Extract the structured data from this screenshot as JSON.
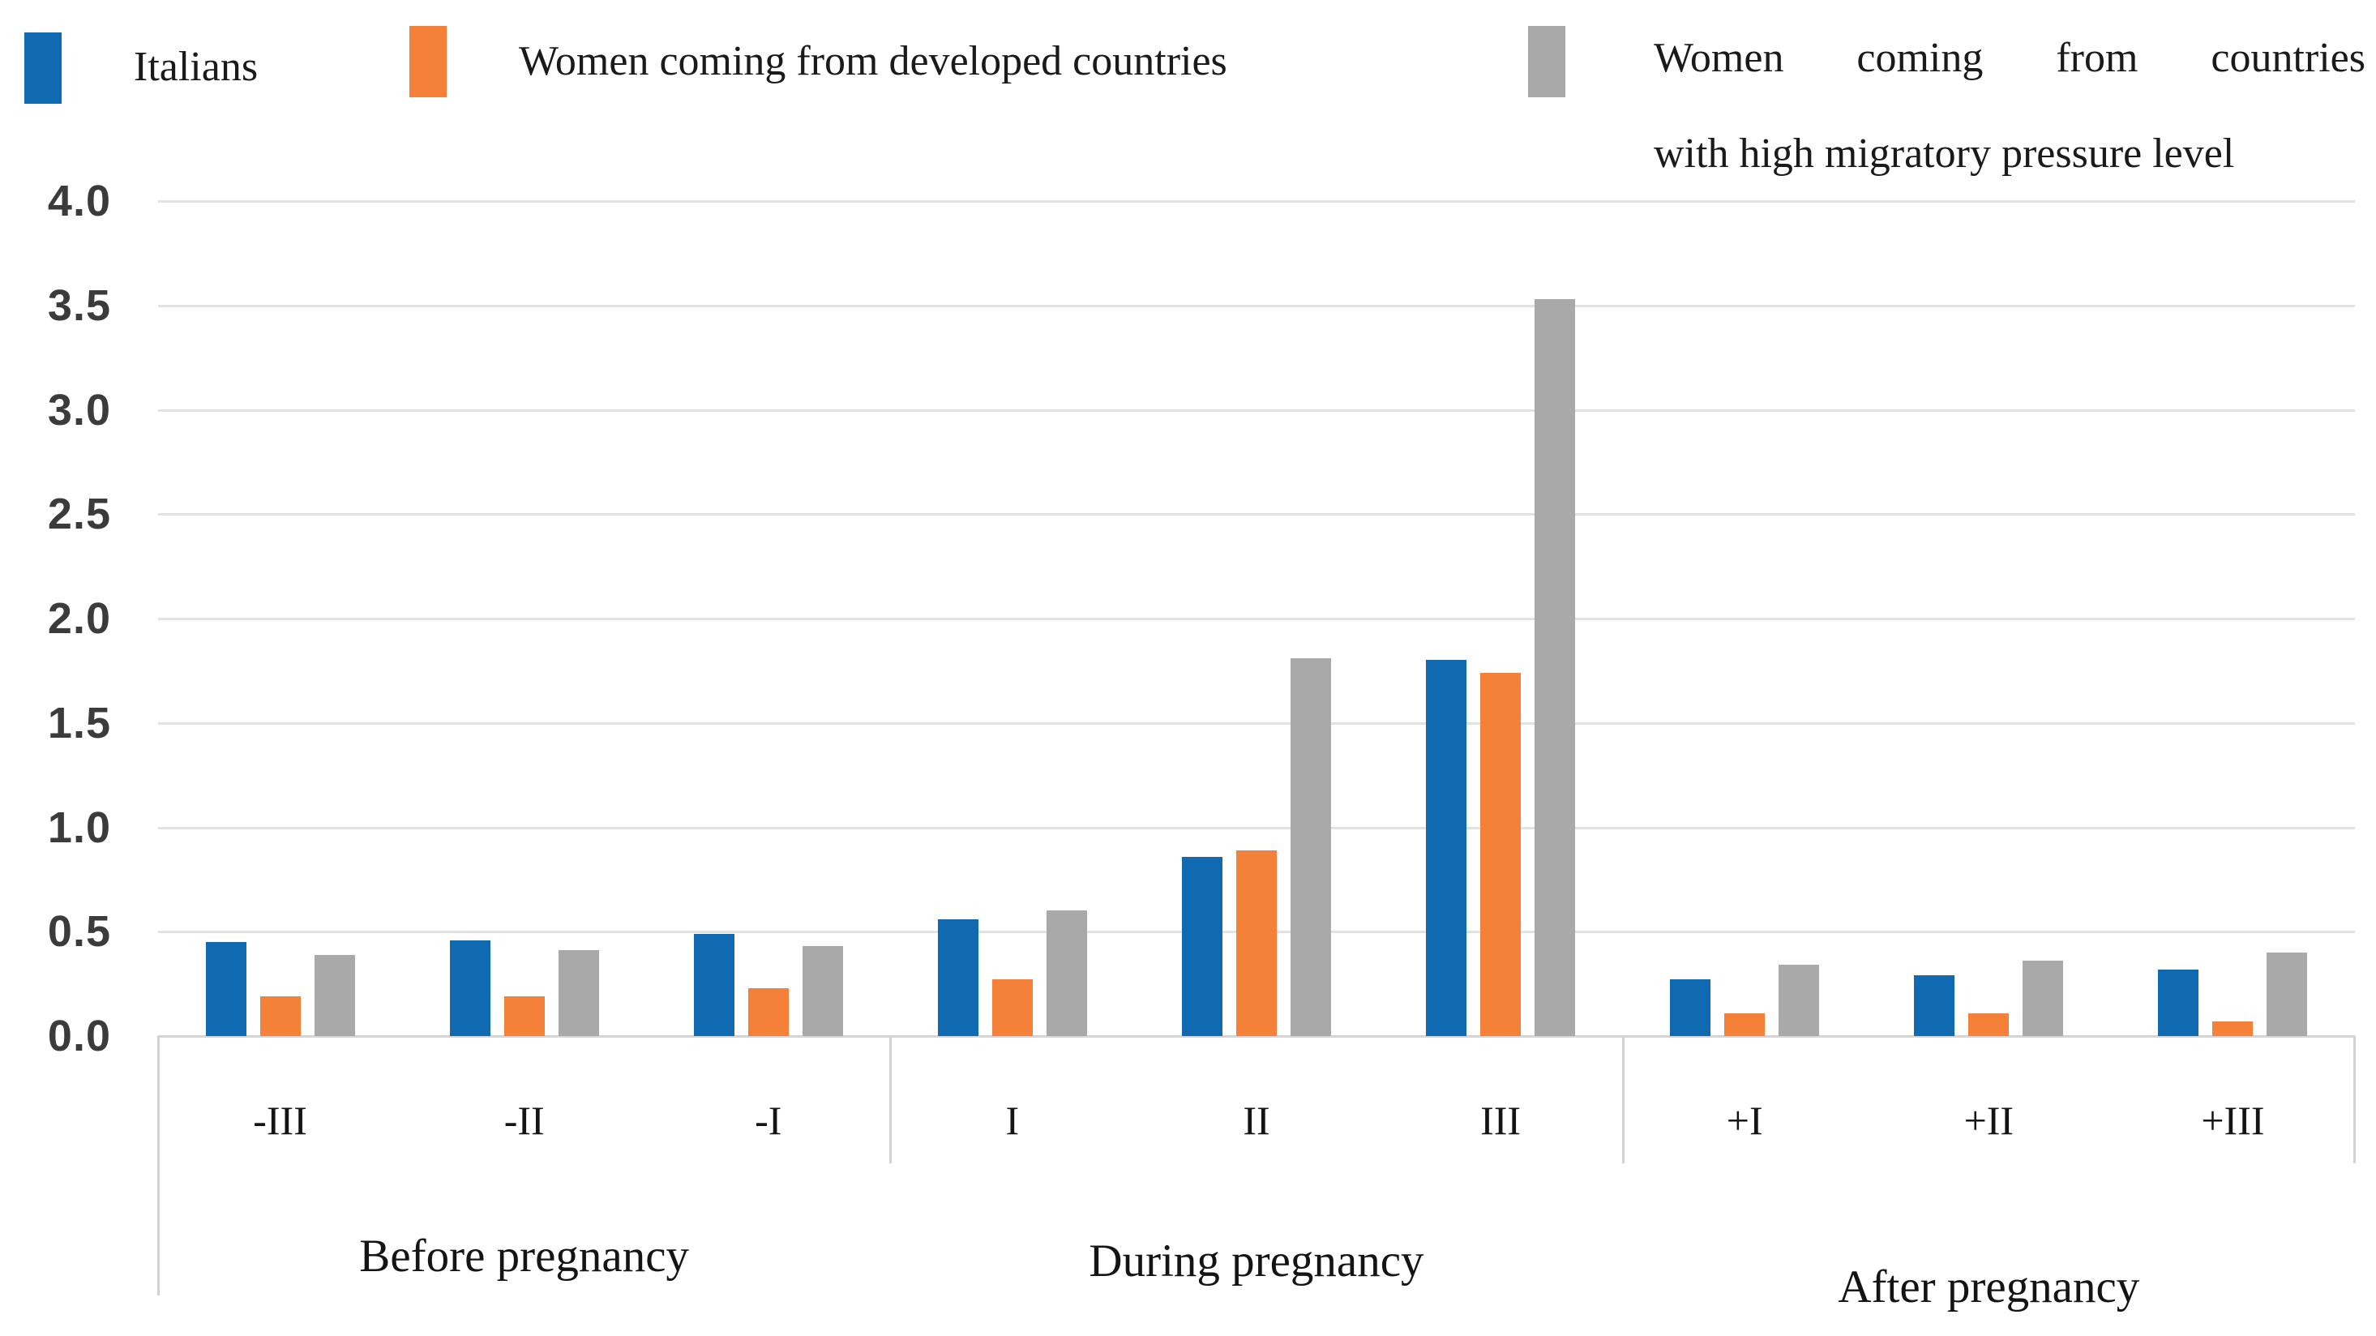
{
  "figure": {
    "background": "#ffffff",
    "gridline_color": "#e2e2e2",
    "axis_line_color": "#d2d2d2"
  },
  "legend": {
    "position": "top",
    "items": [
      {
        "label": "Italians",
        "color": "#0f6ab2",
        "swatch": "blue-square"
      },
      {
        "label": "Women coming from developed countries",
        "color": "#f5803a",
        "swatch": "orange-square"
      },
      {
        "label": "Women coming from countries with high migratory pressure level",
        "label_lines": [
          "Women coming from countries",
          "with high migratory pressure level"
        ],
        "color": "#a9a9a9",
        "swatch": "gray-square"
      }
    ]
  },
  "chart_data": {
    "type": "bar",
    "title": "",
    "xlabel": "",
    "ylabel": "",
    "categories": [
      "-III",
      "-II",
      "-I",
      "I",
      "II",
      "III",
      "+I",
      "+II",
      "+III"
    ],
    "category_groups": [
      {
        "label": "Before pregnancy",
        "span": [
          0,
          2
        ]
      },
      {
        "label": "During pregnancy",
        "span": [
          3,
          5
        ]
      },
      {
        "label": "After pregnancy",
        "span": [
          6,
          8
        ]
      }
    ],
    "series": [
      {
        "name": "Italians",
        "color": "#0f6ab2",
        "values": [
          0.45,
          0.46,
          0.49,
          0.56,
          0.86,
          1.8,
          0.27,
          0.29,
          0.32
        ]
      },
      {
        "name": "Women coming from developed countries",
        "color": "#f5803a",
        "values": [
          0.19,
          0.19,
          0.23,
          0.27,
          0.89,
          1.74,
          0.11,
          0.11,
          0.07
        ]
      },
      {
        "name": "Women coming from countries with high migratory pressure level",
        "color": "#a9a9a9",
        "values": [
          0.39,
          0.41,
          0.43,
          0.6,
          1.81,
          3.53,
          0.34,
          0.36,
          0.4
        ]
      }
    ],
    "ylim": [
      0.0,
      4.0
    ],
    "ytick_step": 0.5,
    "ytick_labels": [
      "0.0",
      "0.5",
      "1.0",
      "1.5",
      "2.0",
      "2.5",
      "3.0",
      "3.5",
      "4.0"
    ],
    "grid": "horizontal",
    "legend_position": "top"
  }
}
